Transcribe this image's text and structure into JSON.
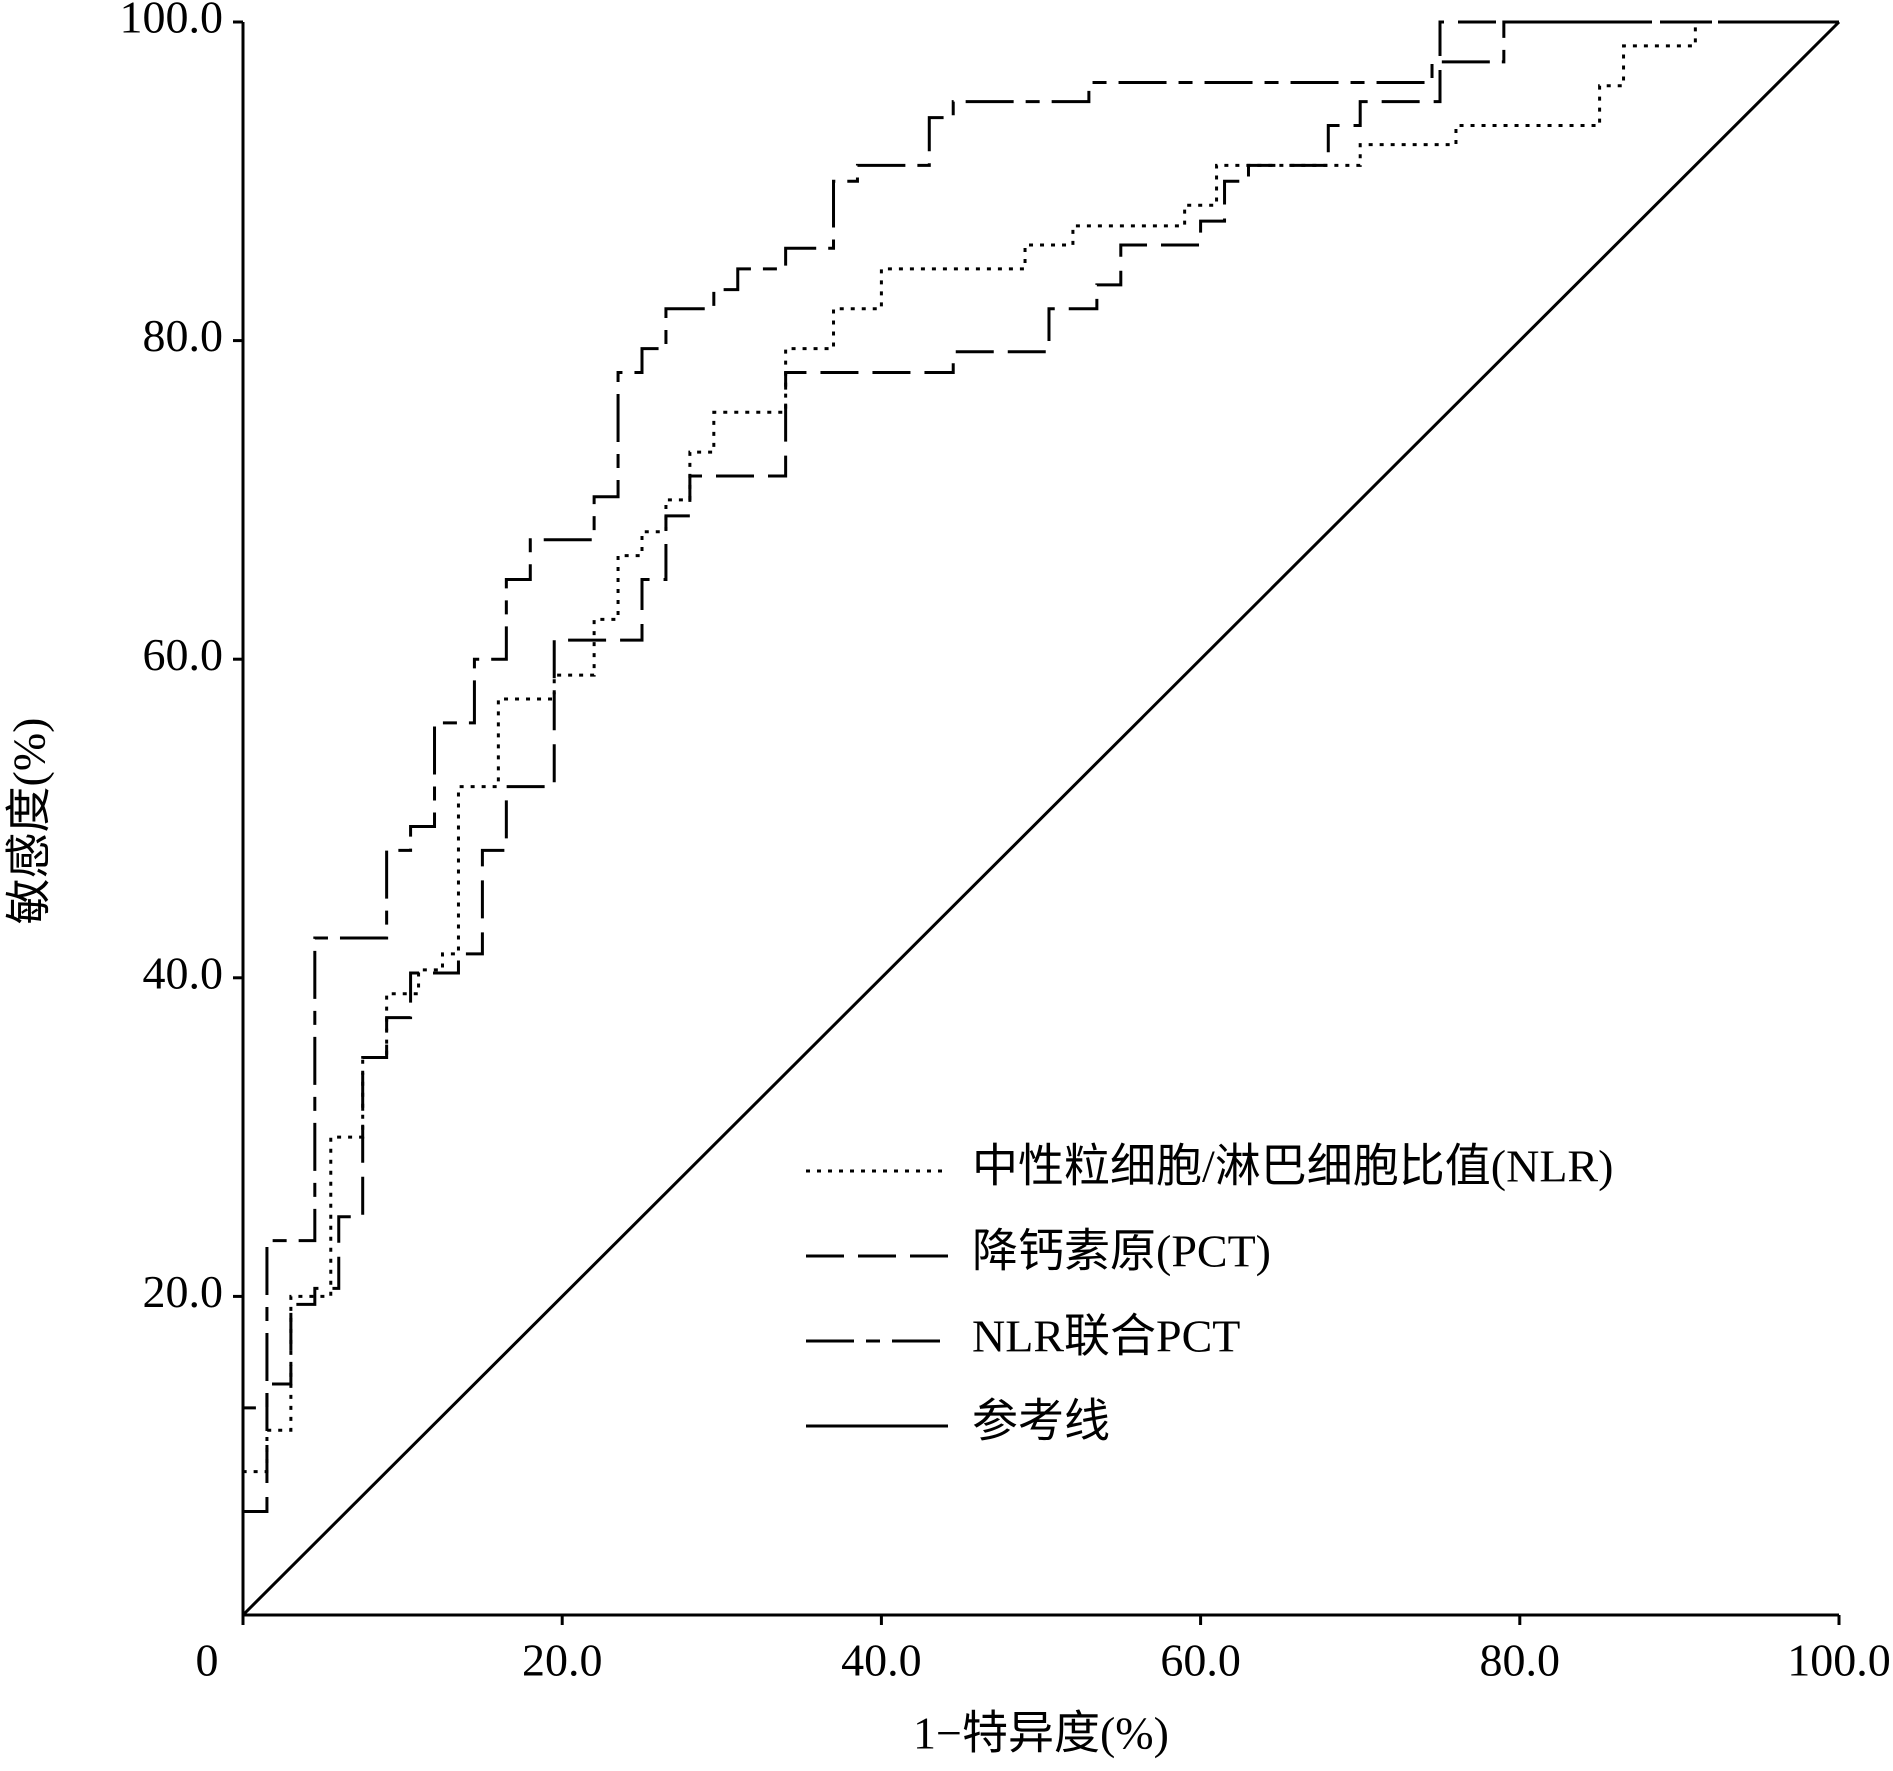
{
  "chart_data": {
    "type": "line",
    "x_label": "1−特异度(%)",
    "y_label": "敏感度(%)",
    "xlim": [
      0,
      100
    ],
    "ylim": [
      0,
      100
    ],
    "xticks": [
      0,
      {
        "value": 20,
        "label": "20.0"
      },
      {
        "value": 40,
        "label": "40.0"
      },
      {
        "value": 60,
        "label": "60.0"
      },
      {
        "value": 80,
        "label": "80.0"
      },
      {
        "value": 100,
        "label": "100.0"
      }
    ],
    "yticks": [
      {
        "value": 20,
        "label": "20.0"
      },
      {
        "value": 40,
        "label": "40.0"
      },
      {
        "value": 60,
        "label": "60.0"
      },
      {
        "value": 80,
        "label": "80.0"
      },
      {
        "value": 100,
        "label": "100.0"
      }
    ],
    "grid": false,
    "legend": "lower right",
    "series": [
      {
        "name": "中性粒细胞/淋巴细胞比值(NLR)",
        "color": "#000000",
        "line_style": "dotted",
        "x": [
          0,
          0,
          1.5,
          1.5,
          3,
          3,
          5.5,
          5.5,
          7.5,
          7.5,
          9,
          9,
          11,
          11,
          12.5,
          12.5,
          13.5,
          13.5,
          16,
          16,
          19.5,
          19.5,
          22,
          22,
          23.5,
          23.5,
          25,
          25,
          26.5,
          26.5,
          28,
          28,
          29.5,
          29.5,
          34,
          34,
          37,
          37,
          40,
          40,
          49,
          49,
          52,
          52,
          59,
          59,
          61,
          61,
          70,
          70,
          76,
          76,
          85,
          85,
          86.5,
          86.5,
          91,
          91,
          100
        ],
        "values": [
          0,
          9,
          9,
          11.6,
          11.6,
          20,
          20,
          30,
          30,
          35,
          35,
          39,
          39,
          40.5,
          40.5,
          41.5,
          41.5,
          52,
          52,
          57.5,
          57.5,
          59,
          59,
          62.5,
          62.5,
          66.5,
          66.5,
          68,
          68,
          70,
          70,
          73,
          73,
          75.5,
          75.5,
          79.5,
          79.5,
          82,
          82,
          84.5,
          84.5,
          86,
          86,
          87.2,
          87.2,
          88.5,
          88.5,
          91,
          91,
          92.3,
          92.3,
          93.5,
          93.5,
          96,
          96,
          98.5,
          98.5,
          100,
          100
        ]
      },
      {
        "name": "降钙素原(PCT)",
        "color": "#000000",
        "line_style": "dashed",
        "x": [
          0,
          0,
          1.5,
          1.5,
          3,
          3,
          4.5,
          4.5,
          6,
          6,
          7.5,
          7.5,
          9,
          9,
          10.5,
          10.5,
          13.5,
          13.5,
          15,
          15,
          16.5,
          16.5,
          19.5,
          19.5,
          25,
          25,
          26.5,
          26.5,
          28,
          28,
          34,
          34,
          44.5,
          44.5,
          50.5,
          50.5,
          53.5,
          53.5,
          55,
          55,
          60,
          60,
          61.5,
          61.5,
          63,
          63,
          68,
          68,
          70,
          70,
          75,
          75,
          100
        ],
        "values": [
          0,
          6.5,
          6.5,
          14.5,
          14.5,
          19.5,
          19.5,
          20.5,
          20.5,
          25,
          25,
          35,
          35,
          37.5,
          37.5,
          40.3,
          40.3,
          41.5,
          41.5,
          48,
          48,
          52,
          52,
          61.2,
          61.2,
          65,
          65,
          69,
          69,
          71.5,
          71.5,
          78,
          78,
          79.3,
          79.3,
          82,
          82,
          83.5,
          83.5,
          86,
          86,
          87.5,
          87.5,
          90,
          90,
          91,
          91,
          93.5,
          93.5,
          95,
          95,
          100,
          100
        ]
      },
      {
        "name": "NLR联合PCT",
        "color": "#000000",
        "line_style": "dashdot",
        "x": [
          0,
          0,
          1.5,
          1.5,
          4.5,
          4.5,
          9,
          9,
          10.5,
          10.5,
          12,
          12,
          14.5,
          14.5,
          16.5,
          16.5,
          18,
          18,
          22,
          22,
          23.5,
          23.5,
          25,
          25,
          26.5,
          26.5,
          29.5,
          29.5,
          31,
          31,
          34,
          34,
          37,
          37,
          38.5,
          38.5,
          43,
          43,
          44.5,
          44.5,
          53,
          53,
          74.5,
          74.5,
          79,
          79,
          100
        ],
        "values": [
          0,
          13,
          13,
          23.5,
          23.5,
          42.5,
          42.5,
          48,
          48,
          49.5,
          49.5,
          56,
          56,
          60,
          60,
          65,
          65,
          67.5,
          67.5,
          70.2,
          70.2,
          78,
          78,
          79.5,
          79.5,
          82,
          82,
          83.2,
          83.2,
          84.5,
          84.5,
          85.8,
          85.8,
          90,
          90,
          91,
          91,
          94,
          94,
          95,
          95,
          96.2,
          96.2,
          97.5,
          97.5,
          100,
          100
        ]
      },
      {
        "name": "参考线",
        "color": "#000000",
        "line_style": "solid",
        "x": [
          0,
          100
        ],
        "values": [
          0,
          100
        ]
      }
    ]
  }
}
